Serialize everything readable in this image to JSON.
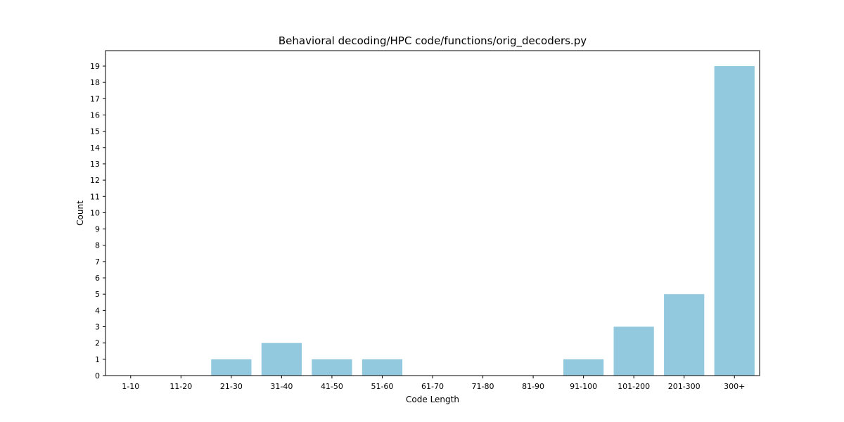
{
  "chart_data": {
    "type": "bar",
    "title": "Behavioral decoding/HPC code/functions/orig_decoders.py",
    "xlabel": "Code Length",
    "ylabel": "Count",
    "categories": [
      "1-10",
      "11-20",
      "21-30",
      "31-40",
      "41-50",
      "51-60",
      "61-70",
      "71-80",
      "81-90",
      "91-100",
      "101-200",
      "201-300",
      "300+"
    ],
    "values": [
      0,
      0,
      1,
      2,
      1,
      1,
      0,
      0,
      0,
      1,
      3,
      5,
      19
    ],
    "ylim": [
      0,
      19.95
    ],
    "yticks": [
      0,
      1,
      2,
      3,
      4,
      5,
      6,
      7,
      8,
      9,
      10,
      11,
      12,
      13,
      14,
      15,
      16,
      17,
      18,
      19
    ],
    "grid": false,
    "legend": "none",
    "colors": {
      "bar": "#92c9df",
      "axis": "#000000",
      "text": "#000000"
    }
  }
}
